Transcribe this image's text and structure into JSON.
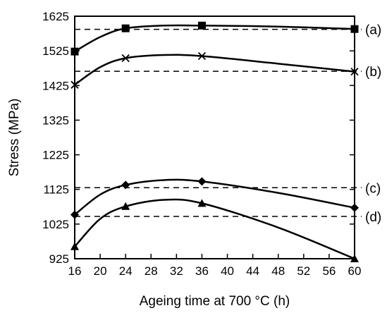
{
  "chart_data": {
    "type": "line",
    "xlabel": "Ageing time at 700 °C (h)",
    "ylabel": "Stress (MPa)",
    "xlim": [
      16,
      60
    ],
    "ylim": [
      925,
      1625
    ],
    "x_ticks": [
      "16",
      "20",
      "24",
      "28",
      "32",
      "36",
      "40",
      "44",
      "48",
      "52",
      "56",
      "60"
    ],
    "y_ticks": [
      "925",
      "1025",
      "1125",
      "1225",
      "1325",
      "1425",
      "1525",
      "1625"
    ],
    "grid": false,
    "series": [
      {
        "name": "(a)",
        "marker": "square",
        "points": [
          [
            16,
            1523
          ],
          [
            24,
            1590
          ],
          [
            36,
            1598
          ],
          [
            60,
            1588
          ]
        ],
        "curve": [
          [
            16,
            1523
          ],
          [
            20,
            1565
          ],
          [
            24,
            1590
          ],
          [
            30,
            1598
          ],
          [
            36,
            1598
          ],
          [
            48,
            1595
          ],
          [
            60,
            1588
          ]
        ],
        "reference_level": 1587
      },
      {
        "name": "(b)",
        "marker": "cross",
        "points": [
          [
            16,
            1427
          ],
          [
            24,
            1504
          ],
          [
            36,
            1510
          ],
          [
            60,
            1465
          ]
        ],
        "curve": [
          [
            16,
            1427
          ],
          [
            20,
            1478
          ],
          [
            24,
            1504
          ],
          [
            30,
            1513
          ],
          [
            36,
            1510
          ],
          [
            48,
            1488
          ],
          [
            60,
            1465
          ]
        ],
        "reference_level": 1466
      },
      {
        "name": "(c)",
        "marker": "diamond",
        "points": [
          [
            16,
            1052
          ],
          [
            24,
            1138
          ],
          [
            36,
            1148
          ],
          [
            60,
            1072
          ]
        ],
        "curve": [
          [
            16,
            1052
          ],
          [
            20,
            1110
          ],
          [
            24,
            1138
          ],
          [
            30,
            1152
          ],
          [
            36,
            1148
          ],
          [
            48,
            1115
          ],
          [
            60,
            1072
          ]
        ],
        "reference_level": 1130
      },
      {
        "name": "(d)",
        "marker": "triangle",
        "points": [
          [
            16,
            960
          ],
          [
            24,
            1076
          ],
          [
            36,
            1085
          ],
          [
            60,
            925
          ]
        ],
        "curve": [
          [
            16,
            960
          ],
          [
            20,
            1040
          ],
          [
            24,
            1076
          ],
          [
            30,
            1095
          ],
          [
            36,
            1085
          ],
          [
            48,
            1015
          ],
          [
            60,
            925
          ]
        ],
        "reference_level": 1047
      }
    ]
  }
}
